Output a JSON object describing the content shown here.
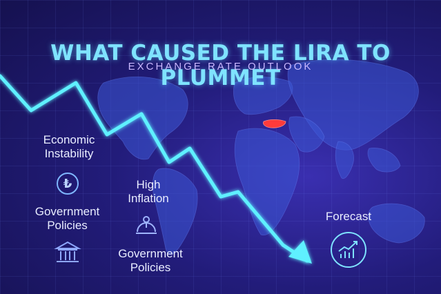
{
  "header": {
    "title": "WHAT CAUSED THE LIRA TO PLUMMET",
    "subtitle": "EXCHANGE RATE OUTLOOK"
  },
  "factors": {
    "economic_instability": "Economic Instability",
    "government_policies_left": "Government Policies",
    "high_inflation": "High Inflation",
    "government_policies_center": "Government Policies",
    "forecast": "Forecast"
  },
  "icons": {
    "lira": "lira-coin-icon",
    "government": "government-building-icon",
    "inflation": "inflation-gauge-icon",
    "forecast": "rising-chart-icon"
  },
  "colors": {
    "accent": "#7fe3ff",
    "subtitle": "#c9b8ff",
    "trend_line": "#5ef0ff",
    "turkey_highlight": "#ff3b3b"
  }
}
